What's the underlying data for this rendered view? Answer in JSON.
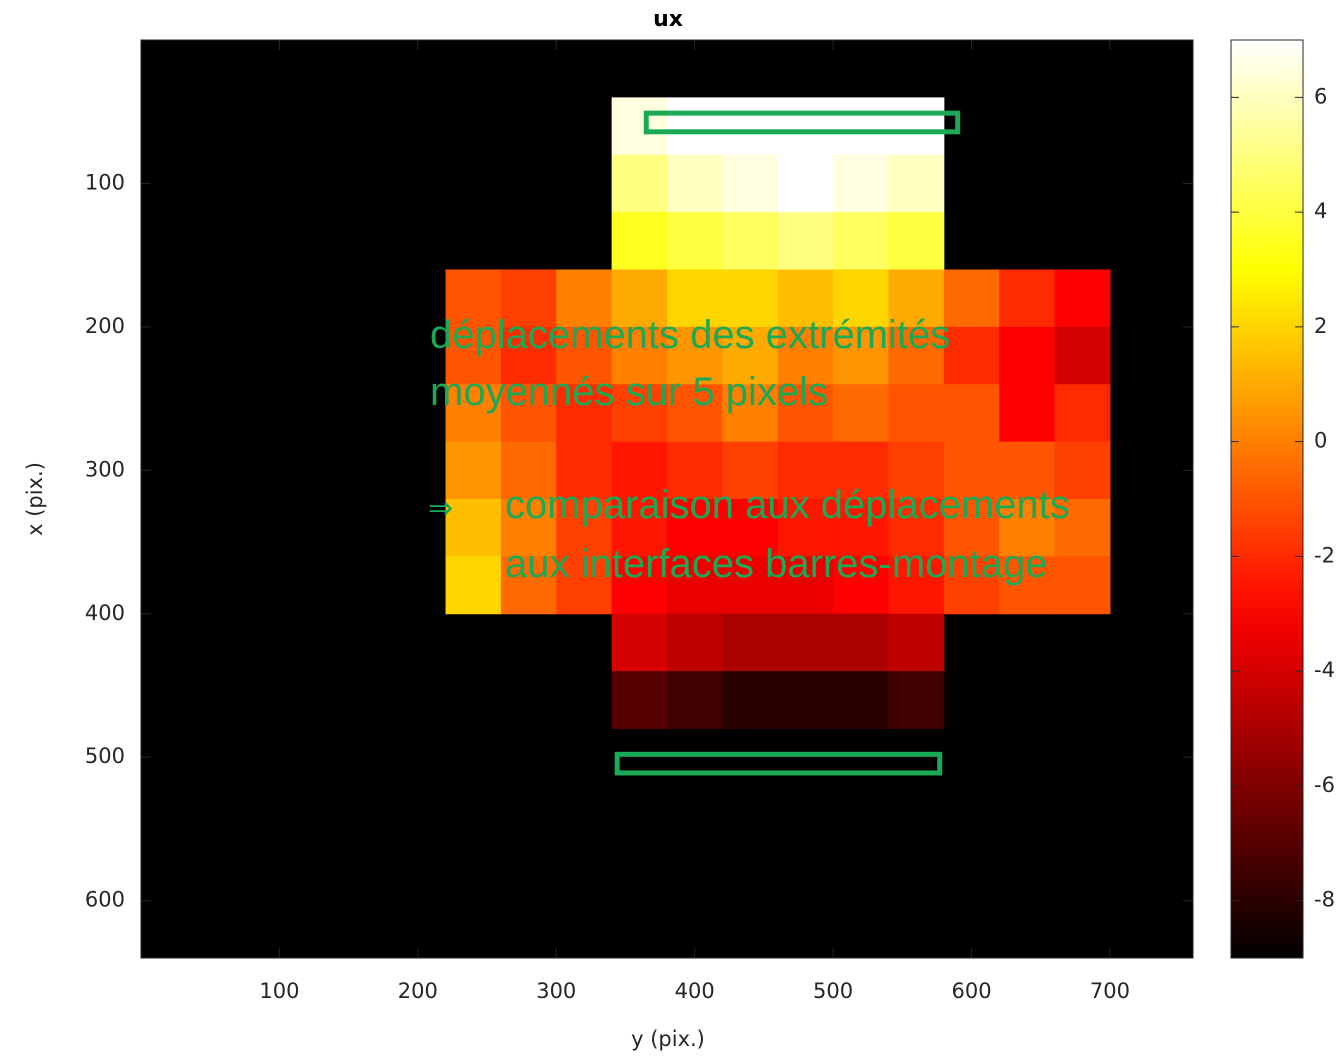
{
  "chart_data": {
    "type": "heatmap",
    "title": "ux",
    "x_label": "y (pix.)",
    "y_label": "x (pix.)",
    "xlim": [
      0,
      760
    ],
    "ylim": [
      0,
      640
    ],
    "y_reversed": true,
    "xticks": [
      100,
      200,
      300,
      400,
      500,
      600,
      700
    ],
    "yticks": [
      100,
      200,
      300,
      400,
      500,
      600
    ],
    "colormap": "hot",
    "clim": [
      -9,
      7
    ],
    "cticks": [
      -8,
      -6,
      -4,
      -2,
      0,
      2,
      4,
      6
    ],
    "x": [
      220,
      260,
      300,
      340,
      380,
      420,
      460,
      500,
      540,
      580,
      620,
      660,
      700
    ],
    "y": [
      40,
      80,
      120,
      160,
      200,
      240,
      280,
      320,
      360,
      400,
      440,
      480
    ],
    "z": [
      [
        null,
        null,
        null,
        6.5,
        7,
        7,
        7,
        7,
        7,
        null,
        null,
        null
      ],
      [
        null,
        null,
        null,
        5,
        6,
        6.5,
        7,
        6.5,
        6,
        null,
        null,
        null
      ],
      [
        null,
        null,
        null,
        3.5,
        4,
        4.5,
        5,
        4.5,
        4,
        null,
        null,
        null
      ],
      [
        -1,
        -1.5,
        0,
        1,
        2,
        2,
        1.5,
        2,
        1,
        -0.5,
        -2,
        -3
      ],
      [
        -1,
        -2,
        -1,
        0,
        0.5,
        1,
        0,
        0.5,
        -0.5,
        -2,
        -3,
        -4
      ],
      [
        0,
        -1,
        -2,
        -1.5,
        -1,
        0,
        -1,
        -0.5,
        -1,
        -1,
        -3,
        -2
      ],
      [
        0.5,
        -0.5,
        -2,
        -2.5,
        -2,
        -1.5,
        -2,
        -2,
        -1.5,
        -1,
        -1,
        -1.5
      ],
      [
        1.5,
        0,
        -1.5,
        -2.5,
        -3,
        -3,
        -2.5,
        -2.5,
        -2,
        -1,
        0,
        -0.5
      ],
      [
        2,
        -0.5,
        -1.5,
        -3,
        -3.5,
        -3.5,
        -3.5,
        -3,
        -2.5,
        -1.5,
        -1,
        -1
      ],
      [
        null,
        null,
        null,
        -4,
        -4.5,
        -5,
        -5,
        -5,
        -4.5,
        null,
        null,
        null
      ],
      [
        null,
        null,
        null,
        -7,
        -7.5,
        -8,
        -8,
        -8,
        -7.5,
        null,
        null,
        null
      ]
    ],
    "boxes": [
      {
        "x": [
          365,
          590
        ],
        "y": [
          51,
          64
        ]
      },
      {
        "x": [
          344,
          577
        ],
        "y": [
          498,
          511
        ]
      }
    ],
    "box_color": "#1aaa55",
    "annotations": [
      "déplacements des extrémités",
      "moyennés sur 5 pixels",
      "⇒",
      "comparaison aux déplacements",
      "aux interfaces barres-montage"
    ]
  }
}
